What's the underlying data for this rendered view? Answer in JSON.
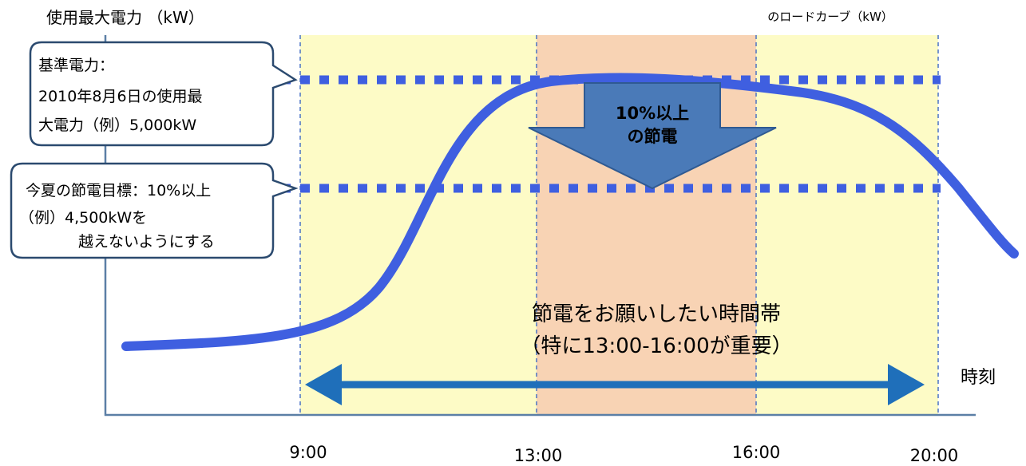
{
  "y_axis_label": "使用最大電力 （kW）",
  "x_axis_label": "時刻",
  "curve_label_top": "",
  "curve_label_bottom": "のロードカーブ（kW）",
  "baseline_callout": {
    "lines": [
      "基準電力：",
      "2010年8月6日の使用最",
      "大電力（例）5,000kW"
    ]
  },
  "target_callout": {
    "lines": [
      "今夏の節電目標：10%以上",
      "（例）4,500kWを",
      "越えないようにする"
    ]
  },
  "saving_arrow": {
    "lines": [
      "10%以上",
      "の節電"
    ]
  },
  "time_band": {
    "title": "節電をお願いしたい時間帯",
    "subtitle": "（特に13:00-16:00が重要）"
  },
  "time_ticks": [
    "9:00",
    "13:00",
    "16:00",
    "20:00"
  ],
  "colors": {
    "axis": "#5b7fa6",
    "curve": "#3f5fe0",
    "dotted_line": "#3f5fe0",
    "yellow_band": "#fdfbc6",
    "peak_band": "#f8d3b4",
    "band_border": "#4a72c4",
    "big_arrow": "#4a7ab8",
    "double_arrow": "#1f6fba",
    "callout_border": "#2b4a6f"
  }
}
